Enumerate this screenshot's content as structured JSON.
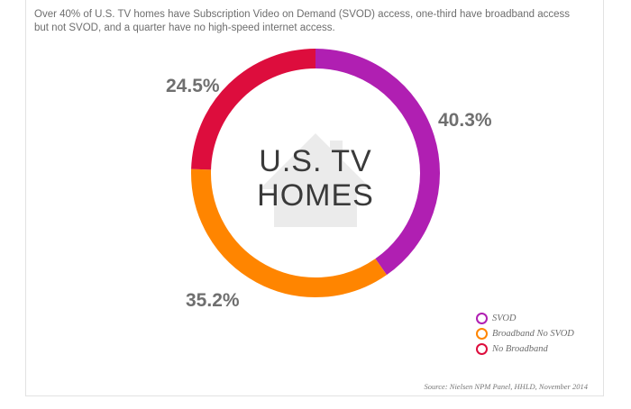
{
  "chart_data": {
    "type": "pie",
    "subtitle": "Over 40% of U.S. TV homes have Subscription Video on Demand (SVOD) access, one-third have broadband access but not SVOD, and a quarter have no high-speed internet access.",
    "center_label": [
      "U.S. TV",
      "HOMES"
    ],
    "categories": [
      "SVOD",
      "Broadband No SVOD",
      "No Broadband"
    ],
    "values": [
      40.3,
      35.2,
      24.5
    ],
    "value_labels": [
      "40.3%",
      "35.2%",
      "24.5%"
    ],
    "colors": [
      "#b01fb2",
      "#ff8500",
      "#dd0d3d"
    ],
    "legend_position": "bottom-right",
    "source": "Source: Nielsen NPM Panel, HHLD, November 2014"
  },
  "icons": {
    "center": "house-icon"
  }
}
